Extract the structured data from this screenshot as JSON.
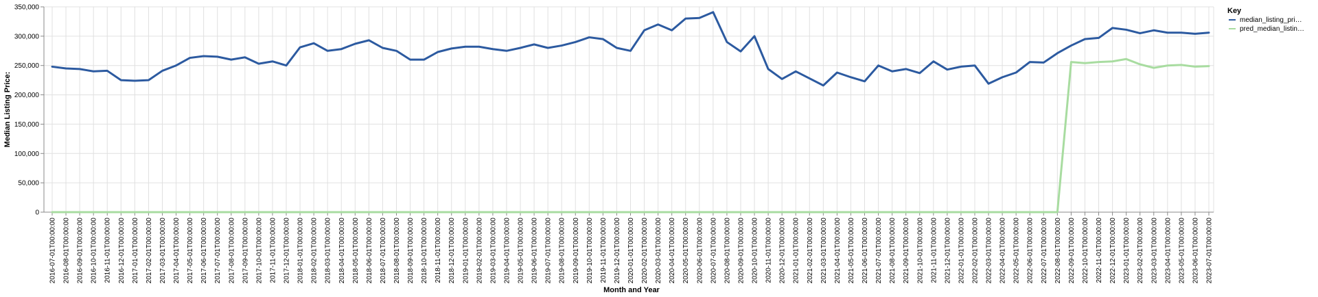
{
  "chart_data": {
    "type": "line",
    "title": "",
    "xlabel": "Month and Year",
    "ylabel": "Median Listing Price:",
    "ylim": [
      0,
      350000
    ],
    "yticks": [
      0,
      50000,
      100000,
      150000,
      200000,
      250000,
      300000,
      350000
    ],
    "ytick_labels": [
      "0",
      "50,000",
      "100,000",
      "150,000",
      "200,000",
      "250,000",
      "300,000",
      "350,000"
    ],
    "grid": true,
    "legend": {
      "title": "Key",
      "position": "top-right"
    },
    "x": [
      "2016-07-01T00:00:00",
      "2016-08-01T00:00:00",
      "2016-09-01T00:00:00",
      "2016-10-01T00:00:00",
      "2016-11-01T00:00:00",
      "2016-12-01T00:00:00",
      "2017-01-01T00:00:00",
      "2017-02-01T00:00:00",
      "2017-03-01T00:00:00",
      "2017-04-01T00:00:00",
      "2017-05-01T00:00:00",
      "2017-06-01T00:00:00",
      "2017-07-01T00:00:00",
      "2017-08-01T00:00:00",
      "2017-09-01T00:00:00",
      "2017-10-01T00:00:00",
      "2017-11-01T00:00:00",
      "2017-12-01T00:00:00",
      "2018-01-01T00:00:00",
      "2018-02-01T00:00:00",
      "2018-03-01T00:00:00",
      "2018-04-01T00:00:00",
      "2018-05-01T00:00:00",
      "2018-06-01T00:00:00",
      "2018-07-01T00:00:00",
      "2018-08-01T00:00:00",
      "2018-09-01T00:00:00",
      "2018-10-01T00:00:00",
      "2018-11-01T00:00:00",
      "2018-12-01T00:00:00",
      "2019-01-01T00:00:00",
      "2019-02-01T00:00:00",
      "2019-03-01T00:00:00",
      "2019-04-01T00:00:00",
      "2019-05-01T00:00:00",
      "2019-06-01T00:00:00",
      "2019-07-01T00:00:00",
      "2019-08-01T00:00:00",
      "2019-09-01T00:00:00",
      "2019-10-01T00:00:00",
      "2019-11-01T00:00:00",
      "2019-12-01T00:00:00",
      "2020-01-01T00:00:00",
      "2020-02-01T00:00:00",
      "2020-03-01T00:00:00",
      "2020-04-01T00:00:00",
      "2020-05-01T00:00:00",
      "2020-06-01T00:00:00",
      "2020-07-01T00:00:00",
      "2020-08-01T00:00:00",
      "2020-09-01T00:00:00",
      "2020-10-01T00:00:00",
      "2020-11-01T00:00:00",
      "2020-12-01T00:00:00",
      "2021-01-01T00:00:00",
      "2021-02-01T00:00:00",
      "2021-03-01T00:00:00",
      "2021-04-01T00:00:00",
      "2021-05-01T00:00:00",
      "2021-06-01T00:00:00",
      "2021-07-01T00:00:00",
      "2021-08-01T00:00:00",
      "2021-09-01T00:00:00",
      "2021-10-01T00:00:00",
      "2021-11-01T00:00:00",
      "2021-12-01T00:00:00",
      "2022-01-01T00:00:00",
      "2022-02-01T00:00:00",
      "2022-03-01T00:00:00",
      "2022-04-01T00:00:00",
      "2022-05-01T00:00:00",
      "2022-06-01T00:00:00",
      "2022-07-01T00:00:00",
      "2022-08-01T00:00:00",
      "2022-09-01T00:00:00",
      "2022-10-01T00:00:00",
      "2022-11-01T00:00:00",
      "2022-12-01T00:00:00",
      "2023-01-01T00:00:00",
      "2023-02-01T00:00:00",
      "2023-03-01T00:00:00",
      "2023-04-01T00:00:00",
      "2023-05-01T00:00:00",
      "2023-06-01T00:00:00",
      "2023-07-01T00:00:00"
    ],
    "series": [
      {
        "name": "median_listing_pri…",
        "color": "#2c5aa0",
        "values": [
          248000,
          245000,
          244000,
          240000,
          241000,
          225000,
          224000,
          225000,
          241000,
          250000,
          263000,
          266000,
          265000,
          260000,
          264000,
          253000,
          257000,
          250000,
          281000,
          288000,
          275000,
          278000,
          287000,
          293000,
          280000,
          275000,
          260000,
          260000,
          273000,
          279000,
          282000,
          282000,
          278000,
          275000,
          280000,
          286000,
          280000,
          284000,
          290000,
          298000,
          295000,
          280000,
          275000,
          310000,
          320000,
          310000,
          330000,
          331000,
          341000,
          290000,
          274000,
          300000,
          244000,
          227000,
          240000,
          228000,
          216000,
          238000,
          230000,
          223000,
          250000,
          240000,
          244000,
          237000,
          257000,
          243000,
          248000,
          250000,
          219000,
          230000,
          238000,
          256000,
          255000,
          271000,
          284000,
          295000,
          297000,
          314000,
          311000,
          305000,
          310000,
          306000,
          306000,
          304000,
          306000
        ]
      },
      {
        "name": "pred_median_listin…",
        "color": "#a8dca0",
        "values": [
          0,
          0,
          0,
          0,
          0,
          0,
          0,
          0,
          0,
          0,
          0,
          0,
          0,
          0,
          0,
          0,
          0,
          0,
          0,
          0,
          0,
          0,
          0,
          0,
          0,
          0,
          0,
          0,
          0,
          0,
          0,
          0,
          0,
          0,
          0,
          0,
          0,
          0,
          0,
          0,
          0,
          0,
          0,
          0,
          0,
          0,
          0,
          0,
          0,
          0,
          0,
          0,
          0,
          0,
          0,
          0,
          0,
          0,
          0,
          0,
          0,
          0,
          0,
          0,
          0,
          0,
          0,
          0,
          0,
          0,
          0,
          0,
          0,
          0,
          256000,
          254000,
          256000,
          257000,
          261000,
          252000,
          246000,
          250000,
          251000,
          248000,
          249000
        ]
      }
    ]
  }
}
